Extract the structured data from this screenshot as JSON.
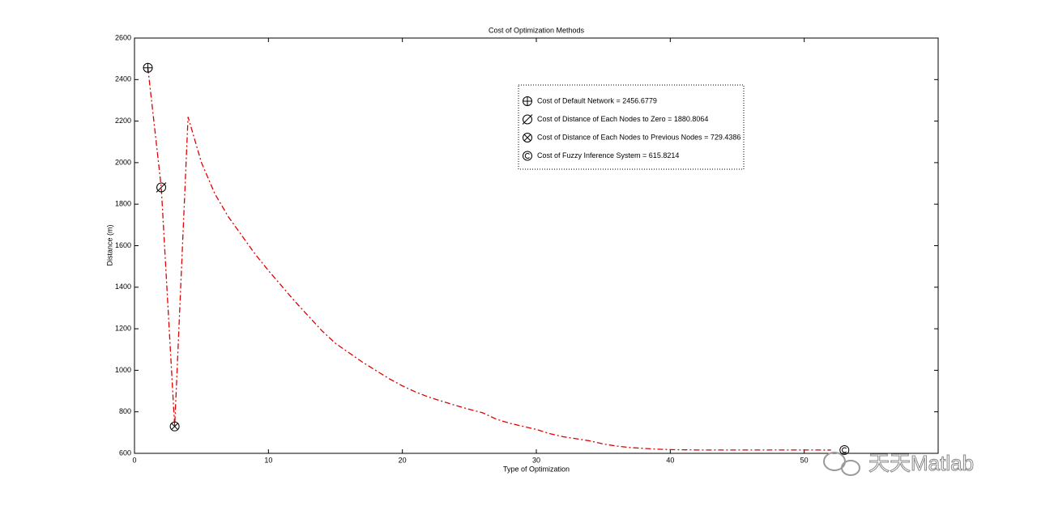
{
  "chart_data": {
    "type": "line",
    "title": "Cost of Optimization Methods",
    "x_label": "Type of Optimization",
    "y_label": "Distance (m)",
    "x": [
      1,
      2,
      3,
      4,
      5,
      6,
      7,
      8,
      9,
      10,
      11,
      12,
      13,
      14,
      15,
      16,
      17,
      18,
      19,
      20,
      21,
      22,
      23,
      24,
      25,
      26,
      27,
      28,
      29,
      30,
      31,
      32,
      33,
      34,
      35,
      36,
      37,
      38,
      39,
      40,
      41,
      42,
      43,
      44,
      45,
      46,
      47,
      48,
      49,
      50,
      51,
      52
    ],
    "series": [
      {
        "color": "#e00000",
        "values": [
          2456.6779,
          1880.8064,
          729.4386,
          2220,
          2000,
          1850,
          1740,
          1650,
          1560,
          1480,
          1405,
          1330,
          1260,
          1190,
          1130,
          1085,
          1040,
          1000,
          960,
          925,
          895,
          870,
          850,
          830,
          812,
          795,
          765,
          745,
          730,
          715,
          695,
          680,
          670,
          660,
          645,
          635,
          628,
          624,
          620,
          618,
          617,
          616,
          616,
          616,
          616,
          616,
          616,
          616,
          616,
          616,
          616,
          615.8214
        ]
      }
    ],
    "markers": [
      {
        "label": "Cost of Default Network = 2456.6779",
        "symbol": "oplus",
        "x": 1,
        "value": 2456.6779
      },
      {
        "label": "Cost of Distance of Each Nodes to Zero = 1880.8064",
        "symbol": "slash",
        "x": 2,
        "value": 1880.8064
      },
      {
        "label": "Cost of Distance of Each Nodes to Previous Nodes = 729.4386",
        "symbol": "otimes",
        "x": 3,
        "value": 729.4386
      },
      {
        "label": "Cost of Fuzzy Inference System = 615.8214",
        "symbol": "copyright",
        "x": 53,
        "value": 615.8214
      }
    ],
    "xlim": [
      0,
      60
    ],
    "xticks": [
      0,
      10,
      20,
      30,
      40,
      50
    ],
    "ylim": [
      600,
      2600
    ],
    "yticks": [
      600,
      800,
      1000,
      1200,
      1400,
      1600,
      1800,
      2000,
      2200,
      2400,
      2600
    ],
    "watermark": "天天Matlab"
  }
}
